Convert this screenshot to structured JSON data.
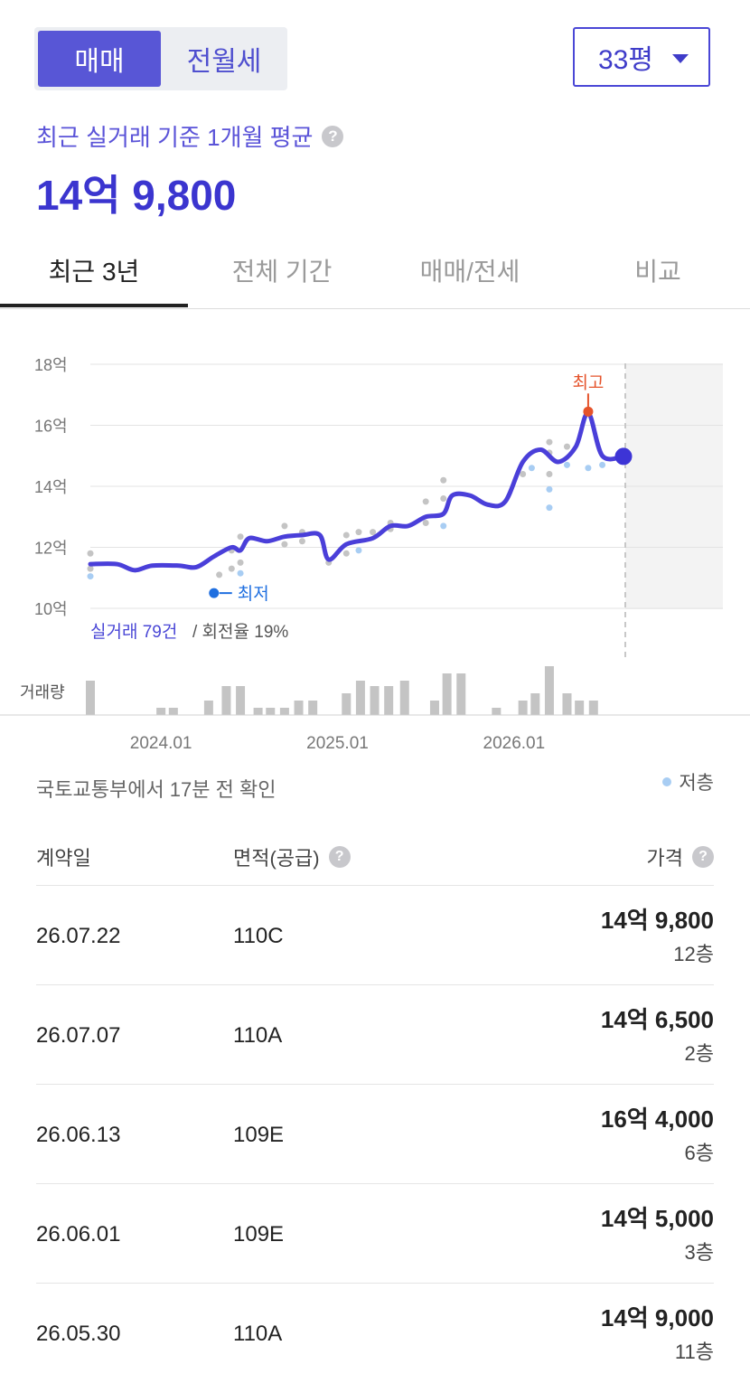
{
  "toggle": {
    "sale": "매매",
    "rent": "전월세"
  },
  "area_select": {
    "value": "33평"
  },
  "summary": {
    "subtitle": "최근 실거래 기준 1개월 평균",
    "avg_price": "14억 9,800"
  },
  "tabs": [
    "최근 3년",
    "전체 기간",
    "매매/전세",
    "비교"
  ],
  "chart_data": {
    "type": "line",
    "y_unit_labels": [
      "10억",
      "12억",
      "14억",
      "16억",
      "18억"
    ],
    "ylim": [
      10,
      18
    ],
    "x_labels": [
      "2024.01",
      "2025.01",
      "2026.01"
    ],
    "trend_line": [
      [
        2023.6,
        11.45
      ],
      [
        2023.75,
        11.45
      ],
      [
        2023.85,
        11.25
      ],
      [
        2023.95,
        11.4
      ],
      [
        2024.1,
        11.4
      ],
      [
        2024.2,
        11.35
      ],
      [
        2024.3,
        11.7
      ],
      [
        2024.4,
        12.0
      ],
      [
        2024.45,
        11.9
      ],
      [
        2024.5,
        12.3
      ],
      [
        2024.6,
        12.2
      ],
      [
        2024.7,
        12.35
      ],
      [
        2024.8,
        12.4
      ],
      [
        2024.9,
        12.4
      ],
      [
        2024.95,
        11.6
      ],
      [
        2025.05,
        12.1
      ],
      [
        2025.2,
        12.3
      ],
      [
        2025.3,
        12.7
      ],
      [
        2025.4,
        12.7
      ],
      [
        2025.5,
        13.0
      ],
      [
        2025.6,
        13.1
      ],
      [
        2025.65,
        13.7
      ],
      [
        2025.75,
        13.7
      ],
      [
        2025.85,
        13.4
      ],
      [
        2025.95,
        13.5
      ],
      [
        2026.05,
        14.8
      ],
      [
        2026.15,
        15.2
      ],
      [
        2026.25,
        14.8
      ],
      [
        2026.35,
        15.3
      ],
      [
        2026.42,
        16.4
      ],
      [
        2026.5,
        15.0
      ],
      [
        2026.62,
        14.98
      ]
    ],
    "trades": [
      [
        2023.6,
        11.8,
        0
      ],
      [
        2023.6,
        11.3,
        0
      ],
      [
        2023.6,
        11.05,
        1
      ],
      [
        2024.33,
        11.1,
        0
      ],
      [
        2024.4,
        11.9,
        0
      ],
      [
        2024.4,
        11.3,
        0
      ],
      [
        2024.45,
        11.5,
        0
      ],
      [
        2024.45,
        11.15,
        1
      ],
      [
        2024.45,
        12.35,
        0
      ],
      [
        2024.7,
        12.7,
        0
      ],
      [
        2024.7,
        12.1,
        0
      ],
      [
        2024.8,
        12.5,
        0
      ],
      [
        2024.8,
        12.2,
        0
      ],
      [
        2024.95,
        11.5,
        0
      ],
      [
        2025.05,
        11.8,
        0
      ],
      [
        2025.05,
        12.4,
        0
      ],
      [
        2025.12,
        12.5,
        0
      ],
      [
        2025.12,
        11.9,
        1
      ],
      [
        2025.2,
        12.5,
        0
      ],
      [
        2025.3,
        12.8,
        0
      ],
      [
        2025.3,
        12.6,
        0
      ],
      [
        2025.5,
        12.8,
        0
      ],
      [
        2025.5,
        13.5,
        0
      ],
      [
        2025.6,
        13.6,
        0
      ],
      [
        2025.6,
        12.7,
        1
      ],
      [
        2025.6,
        14.2,
        0
      ],
      [
        2026.05,
        14.4,
        0
      ],
      [
        2026.1,
        14.6,
        1
      ],
      [
        2026.2,
        15.45,
        0
      ],
      [
        2026.2,
        15.1,
        0
      ],
      [
        2026.2,
        14.4,
        0
      ],
      [
        2026.2,
        13.9,
        1
      ],
      [
        2026.2,
        13.3,
        1
      ],
      [
        2026.3,
        14.7,
        1
      ],
      [
        2026.3,
        15.3,
        0
      ],
      [
        2026.42,
        14.6,
        1
      ],
      [
        2026.5,
        14.7,
        1
      ]
    ],
    "min_label": "최저",
    "max_label": "최고",
    "min_point": [
      2024.3,
      10.5
    ],
    "max_point": [
      2026.42,
      16.45
    ],
    "current_point": [
      2026.62,
      14.98
    ],
    "trade_count_label": "실거래 79건",
    "turnover_label": "/ 회전율 19%",
    "volume_label": "거래량",
    "volume": [
      [
        2023.6,
        38
      ],
      [
        2024.0,
        8
      ],
      [
        2024.07,
        8
      ],
      [
        2024.27,
        16
      ],
      [
        2024.37,
        32
      ],
      [
        2024.45,
        32
      ],
      [
        2024.55,
        8
      ],
      [
        2024.62,
        8
      ],
      [
        2024.7,
        8
      ],
      [
        2024.78,
        16
      ],
      [
        2024.86,
        16
      ],
      [
        2025.05,
        24
      ],
      [
        2025.13,
        38
      ],
      [
        2025.21,
        32
      ],
      [
        2025.29,
        32
      ],
      [
        2025.38,
        38
      ],
      [
        2025.55,
        16
      ],
      [
        2025.62,
        46
      ],
      [
        2025.7,
        46
      ],
      [
        2025.9,
        8
      ],
      [
        2026.05,
        16
      ],
      [
        2026.12,
        24
      ],
      [
        2026.2,
        54
      ],
      [
        2026.3,
        24
      ],
      [
        2026.37,
        16
      ],
      [
        2026.45,
        16
      ]
    ]
  },
  "source_text": "국토교통부에서 17분 전 확인",
  "legend_low": "저층",
  "table": {
    "headers": {
      "date": "계약일",
      "area": "면적(공급)",
      "price": "가격"
    },
    "rows": [
      {
        "date": "26.07.22",
        "area": "110C",
        "price": "14억 9,800",
        "floor": "12층"
      },
      {
        "date": "26.07.07",
        "area": "110A",
        "price": "14억 6,500",
        "floor": "2층"
      },
      {
        "date": "26.06.13",
        "area": "109E",
        "price": "16억 4,000",
        "floor": "6층"
      },
      {
        "date": "26.06.01",
        "area": "109E",
        "price": "14억 5,000",
        "floor": "3층"
      },
      {
        "date": "26.05.30",
        "area": "110A",
        "price": "14억 9,000",
        "floor": "11층"
      }
    ]
  }
}
